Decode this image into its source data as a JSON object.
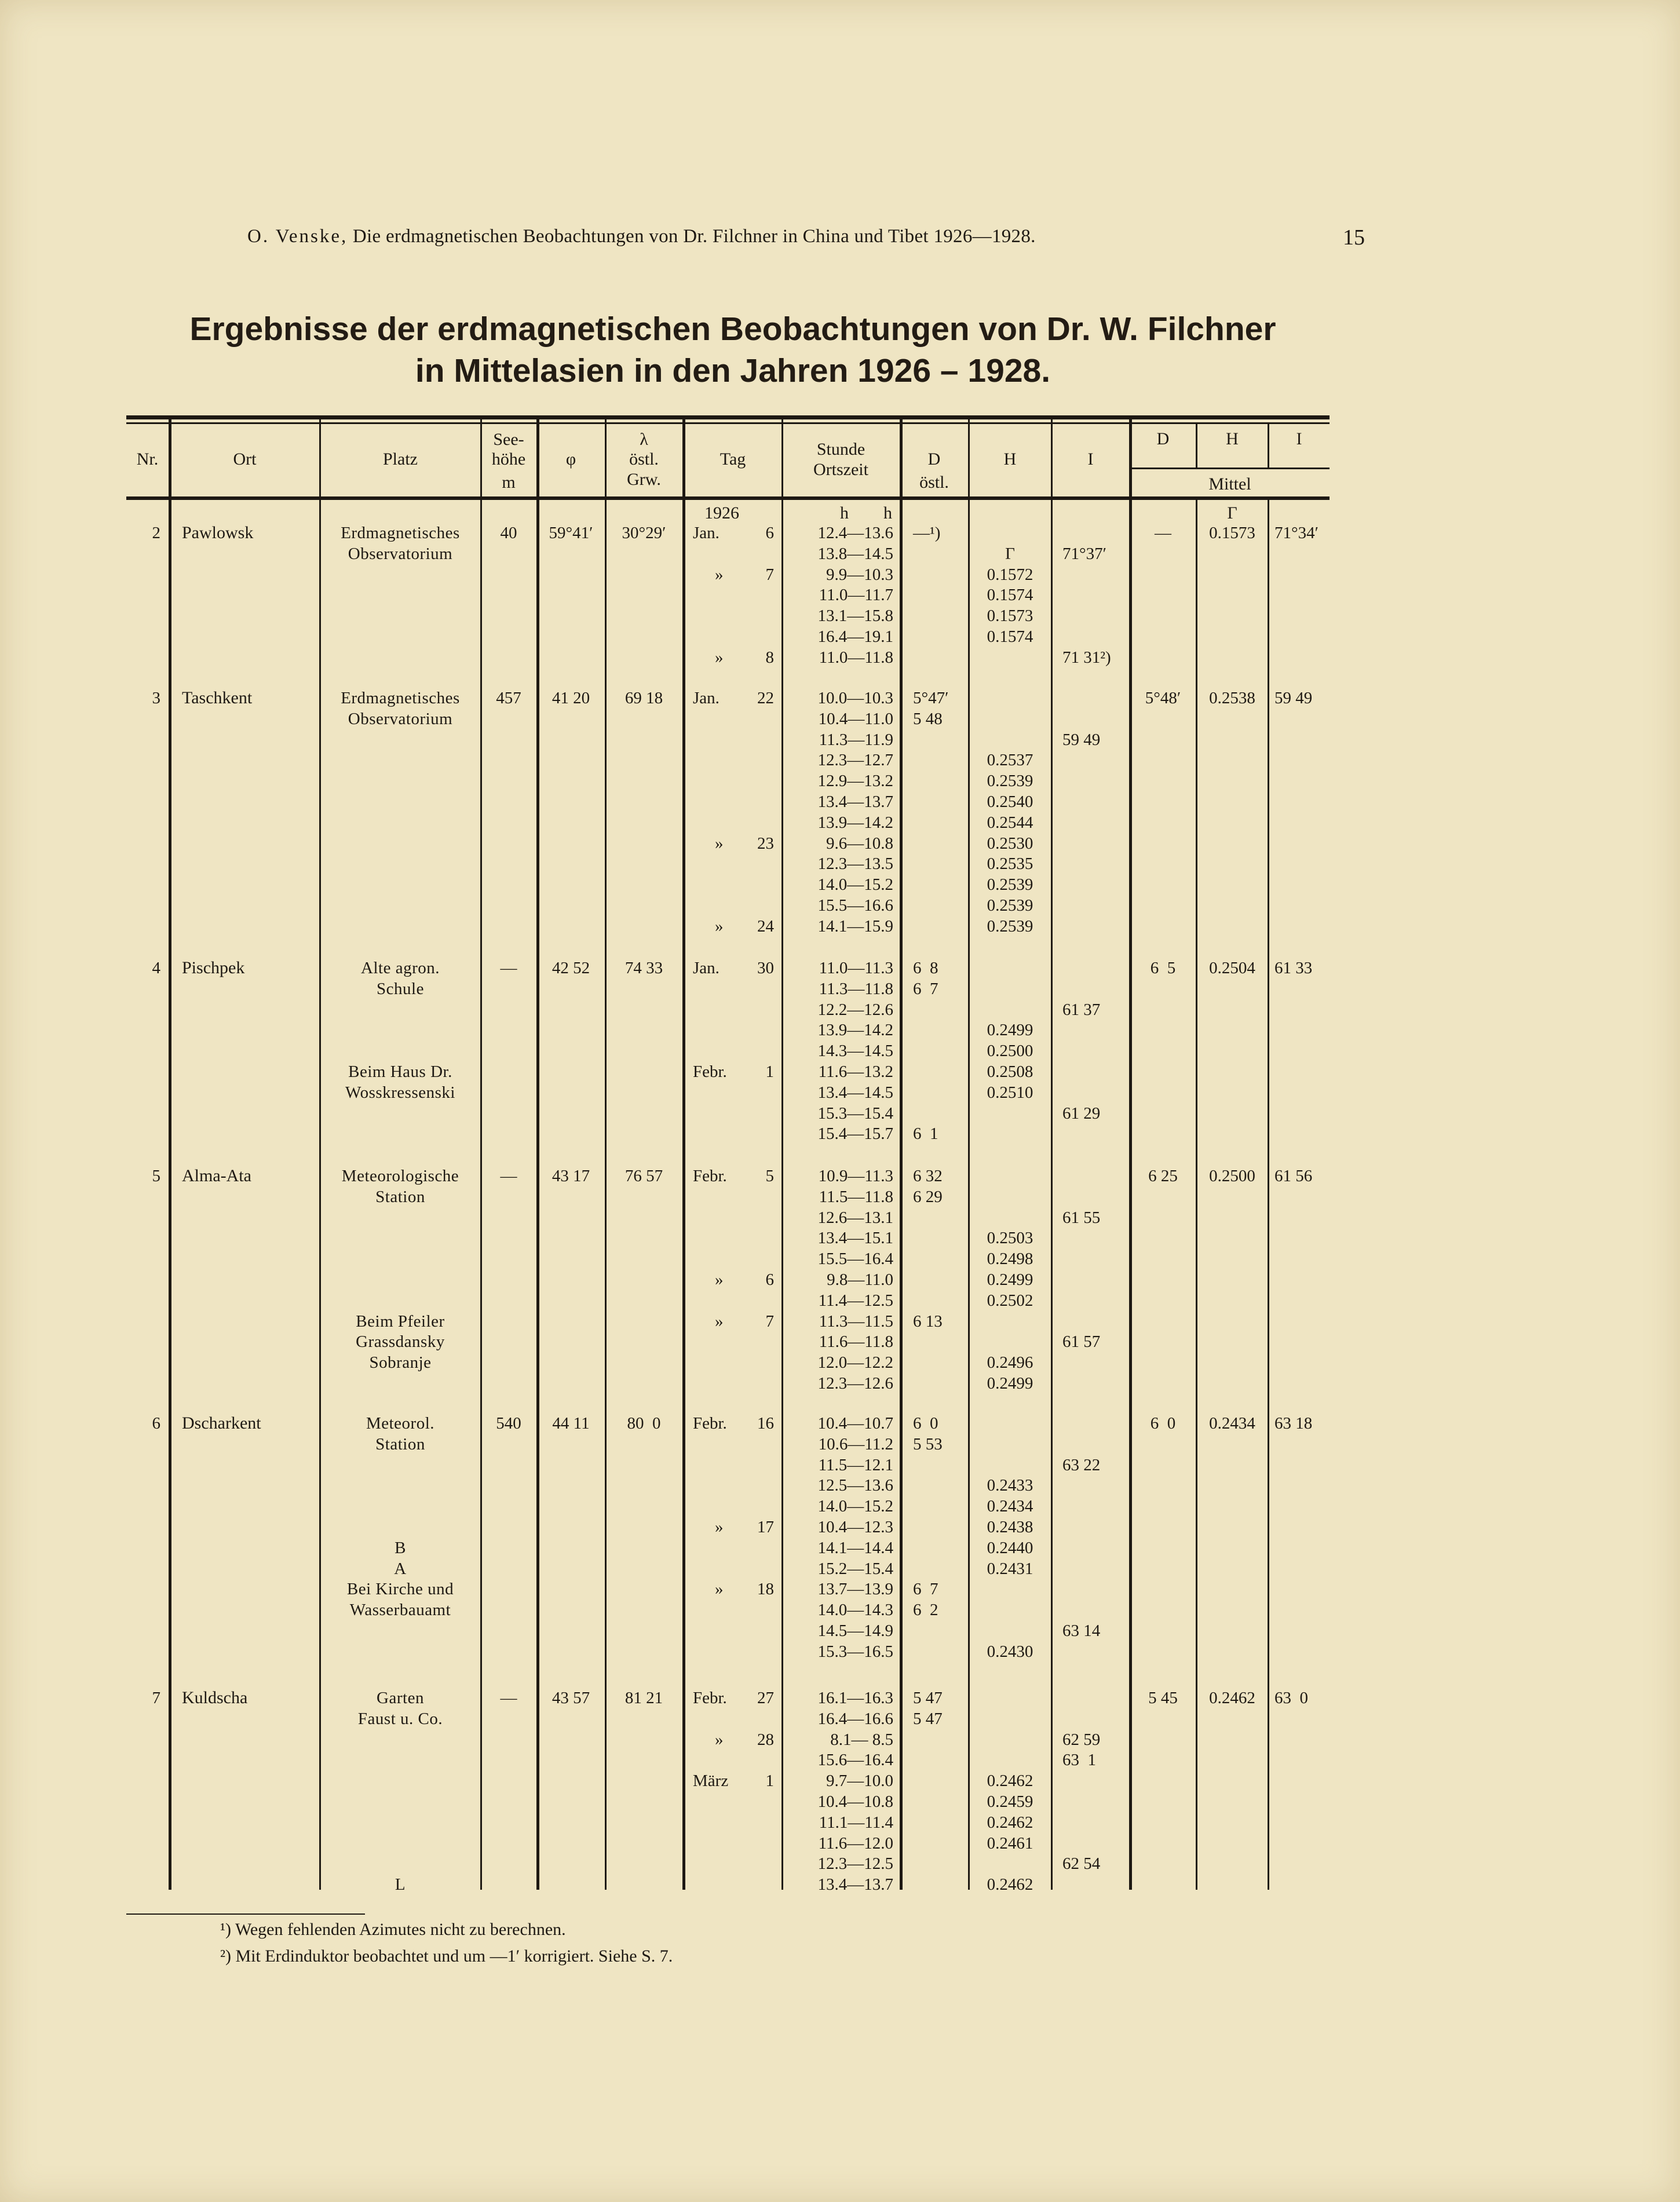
{
  "running_head": {
    "author": "O. Venske,",
    "text": "Die erdmagnetischen Beobachtungen von Dr. Filchner in China und Tibet 1926—1928.",
    "page_number": "15"
  },
  "title": {
    "line1": "Ergebnisse der erdmagnetischen Beobachtungen von Dr. W. Filchner",
    "line2": "in Mittelasien in den Jahren 1926 – 1928."
  },
  "table": {
    "headers": {
      "nr": "Nr.",
      "ort": "Ort",
      "platz": "Platz",
      "seehoehe": [
        "See-",
        "höhe",
        "m"
      ],
      "phi": "φ",
      "lambda": [
        "λ",
        "östl.",
        "Grw."
      ],
      "tag": "Tag",
      "stunde": [
        "Stunde",
        "Ortszeit"
      ],
      "d": [
        "D",
        "östl."
      ],
      "h": "H",
      "i": "I",
      "mittel_d": "D",
      "mittel_h": "H",
      "mittel_i": "I",
      "mittel": "Mittel"
    },
    "units_row": {
      "year": "1926",
      "stunde": "h        h",
      "mittel_h": "Γ"
    },
    "sections": [
      {
        "nr": "2",
        "ort": "Pawlowsk",
        "seehoehe": "40",
        "phi": "59°41′",
        "lambda": "30°29′",
        "mittel": {
          "d": "—",
          "h": "0.1573",
          "i": "71°34′"
        },
        "lines": [
          {
            "platz": "Erdmagnetisches",
            "tag_m": "Jan.",
            "tag_d": "6",
            "stunde": "12.4—13.6",
            "d": "—¹)",
            "h": "",
            "i": ""
          },
          {
            "platz": "Observatorium",
            "tag_m": "",
            "tag_d": "",
            "stunde": "13.8—14.5",
            "d": "",
            "h": "Γ",
            "i": "71°37′"
          },
          {
            "platz": "",
            "tag_m": "»",
            "tag_d": "7",
            "stunde": "9.9—10.3",
            "d": "",
            "h": "0.1572",
            "i": ""
          },
          {
            "platz": "",
            "tag_m": "",
            "tag_d": "",
            "stunde": "11.0—11.7",
            "d": "",
            "h": "0.1574",
            "i": ""
          },
          {
            "platz": "",
            "tag_m": "",
            "tag_d": "",
            "stunde": "13.1—15.8",
            "d": "",
            "h": "0.1573",
            "i": ""
          },
          {
            "platz": "",
            "tag_m": "",
            "tag_d": "",
            "stunde": "16.4—19.1",
            "d": "",
            "h": "0.1574",
            "i": ""
          },
          {
            "platz": "",
            "tag_m": "»",
            "tag_d": "8",
            "stunde": "11.0—11.8",
            "d": "",
            "h": "",
            "i": "71 31²)"
          }
        ]
      },
      {
        "nr": "3",
        "ort": "Taschkent",
        "seehoehe": "457",
        "phi": "41 20",
        "lambda": "69 18",
        "mittel": {
          "d": "5°48′",
          "h": "0.2538",
          "i": "59 49"
        },
        "lines": [
          {
            "platz": "Erdmagnetisches",
            "tag_m": "Jan.",
            "tag_d": "22",
            "stunde": "10.0—10.3",
            "d": "5°47′",
            "h": "",
            "i": ""
          },
          {
            "platz": "Observatorium",
            "tag_m": "",
            "tag_d": "",
            "stunde": "10.4—11.0",
            "d": "5 48",
            "h": "",
            "i": ""
          },
          {
            "platz": "",
            "tag_m": "",
            "tag_d": "",
            "stunde": "11.3—11.9",
            "d": "",
            "h": "",
            "i": "59 49"
          },
          {
            "platz": "",
            "tag_m": "",
            "tag_d": "",
            "stunde": "12.3—12.7",
            "d": "",
            "h": "0.2537",
            "i": ""
          },
          {
            "platz": "",
            "tag_m": "",
            "tag_d": "",
            "stunde": "12.9—13.2",
            "d": "",
            "h": "0.2539",
            "i": ""
          },
          {
            "platz": "",
            "tag_m": "",
            "tag_d": "",
            "stunde": "13.4—13.7",
            "d": "",
            "h": "0.2540",
            "i": ""
          },
          {
            "platz": "",
            "tag_m": "",
            "tag_d": "",
            "stunde": "13.9—14.2",
            "d": "",
            "h": "0.2544",
            "i": ""
          },
          {
            "platz": "",
            "tag_m": "»",
            "tag_d": "23",
            "stunde": "9.6—10.8",
            "d": "",
            "h": "0.2530",
            "i": ""
          },
          {
            "platz": "",
            "tag_m": "",
            "tag_d": "",
            "stunde": "12.3—13.5",
            "d": "",
            "h": "0.2535",
            "i": ""
          },
          {
            "platz": "",
            "tag_m": "",
            "tag_d": "",
            "stunde": "14.0—15.2",
            "d": "",
            "h": "0.2539",
            "i": ""
          },
          {
            "platz": "",
            "tag_m": "",
            "tag_d": "",
            "stunde": "15.5—16.6",
            "d": "",
            "h": "0.2539",
            "i": ""
          },
          {
            "platz": "",
            "tag_m": "»",
            "tag_d": "24",
            "stunde": "14.1—15.9",
            "d": "",
            "h": "0.2539",
            "i": ""
          }
        ]
      },
      {
        "nr": "4",
        "ort": "Pischpek",
        "seehoehe": "—",
        "phi": "42 52",
        "lambda": "74 33",
        "mittel": {
          "d": "6  5",
          "h": "0.2504",
          "i": "61 33"
        },
        "lines": [
          {
            "platz": "Alte agron.",
            "tag_m": "Jan.",
            "tag_d": "30",
            "stunde": "11.0—11.3",
            "d": "6  8",
            "h": "",
            "i": ""
          },
          {
            "platz": "Schule",
            "tag_m": "",
            "tag_d": "",
            "stunde": "11.3—11.8",
            "d": "6  7",
            "h": "",
            "i": ""
          },
          {
            "platz": "",
            "tag_m": "",
            "tag_d": "",
            "stunde": "12.2—12.6",
            "d": "",
            "h": "",
            "i": "61 37"
          },
          {
            "platz": "",
            "tag_m": "",
            "tag_d": "",
            "stunde": "13.9—14.2",
            "d": "",
            "h": "0.2499",
            "i": ""
          },
          {
            "platz": "",
            "tag_m": "",
            "tag_d": "",
            "stunde": "14.3—14.5",
            "d": "",
            "h": "0.2500",
            "i": ""
          },
          {
            "platz": "Beim Haus Dr.",
            "tag_m": "Febr.",
            "tag_d": "1",
            "stunde": "11.6—13.2",
            "d": "",
            "h": "0.2508",
            "i": ""
          },
          {
            "platz": "Wosskressenski",
            "tag_m": "",
            "tag_d": "",
            "stunde": "13.4—14.5",
            "d": "",
            "h": "0.2510",
            "i": ""
          },
          {
            "platz": "",
            "tag_m": "",
            "tag_d": "",
            "stunde": "15.3—15.4",
            "d": "",
            "h": "",
            "i": "61 29"
          },
          {
            "platz": "",
            "tag_m": "",
            "tag_d": "",
            "stunde": "15.4—15.7",
            "d": "6  1",
            "h": "",
            "i": ""
          }
        ]
      },
      {
        "nr": "5",
        "ort": "Alma-Ata",
        "seehoehe": "—",
        "phi": "43 17",
        "lambda": "76 57",
        "mittel": {
          "d": "6 25",
          "h": "0.2500",
          "i": "61 56"
        },
        "lines": [
          {
            "platz": "Meteorologische",
            "tag_m": "Febr.",
            "tag_d": "5",
            "stunde": "10.9—11.3",
            "d": "6 32",
            "h": "",
            "i": ""
          },
          {
            "platz": "Station",
            "tag_m": "",
            "tag_d": "",
            "stunde": "11.5—11.8",
            "d": "6 29",
            "h": "",
            "i": ""
          },
          {
            "platz": "",
            "tag_m": "",
            "tag_d": "",
            "stunde": "12.6—13.1",
            "d": "",
            "h": "",
            "i": "61 55"
          },
          {
            "platz": "",
            "tag_m": "",
            "tag_d": "",
            "stunde": "13.4—15.1",
            "d": "",
            "h": "0.2503",
            "i": ""
          },
          {
            "platz": "",
            "tag_m": "",
            "tag_d": "",
            "stunde": "15.5—16.4",
            "d": "",
            "h": "0.2498",
            "i": ""
          },
          {
            "platz": "",
            "tag_m": "»",
            "tag_d": "6",
            "stunde": "9.8—11.0",
            "d": "",
            "h": "0.2499",
            "i": ""
          },
          {
            "platz": "",
            "tag_m": "",
            "tag_d": "",
            "stunde": "11.4—12.5",
            "d": "",
            "h": "0.2502",
            "i": ""
          },
          {
            "platz": "Beim Pfeiler",
            "tag_m": "»",
            "tag_d": "7",
            "stunde": "11.3—11.5",
            "d": "6 13",
            "h": "",
            "i": ""
          },
          {
            "platz": "Grassdansky",
            "tag_m": "",
            "tag_d": "",
            "stunde": "11.6—11.8",
            "d": "",
            "h": "",
            "i": "61 57"
          },
          {
            "platz": "Sobranje",
            "tag_m": "",
            "tag_d": "",
            "stunde": "12.0—12.2",
            "d": "",
            "h": "0.2496",
            "i": ""
          },
          {
            "platz": "",
            "tag_m": "",
            "tag_d": "",
            "stunde": "12.3—12.6",
            "d": "",
            "h": "0.2499",
            "i": ""
          }
        ]
      },
      {
        "nr": "6",
        "ort": "Dscharkent",
        "seehoehe": "540",
        "phi": "44 11",
        "lambda": "80  0",
        "mittel": {
          "d": "6  0",
          "h": "0.2434",
          "i": "63 18"
        },
        "lines": [
          {
            "platz": "Meteorol.",
            "tag_m": "Febr.",
            "tag_d": "16",
            "stunde": "10.4—10.7",
            "d": "6  0",
            "h": "",
            "i": ""
          },
          {
            "platz": "Station",
            "tag_m": "",
            "tag_d": "",
            "stunde": "10.6—11.2",
            "d": "5 53",
            "h": "",
            "i": ""
          },
          {
            "platz": "",
            "tag_m": "",
            "tag_d": "",
            "stunde": "11.5—12.1",
            "d": "",
            "h": "",
            "i": "63 22"
          },
          {
            "platz": "",
            "tag_m": "",
            "tag_d": "",
            "stunde": "12.5—13.6",
            "d": "",
            "h": "0.2433",
            "i": ""
          },
          {
            "platz": "",
            "tag_m": "",
            "tag_d": "",
            "stunde": "14.0—15.2",
            "d": "",
            "h": "0.2434",
            "i": ""
          },
          {
            "platz": "",
            "tag_m": "»",
            "tag_d": "17",
            "stunde": "10.4—12.3",
            "d": "",
            "h": "0.2438",
            "i": ""
          },
          {
            "platz": "B",
            "tag_m": "",
            "tag_d": "",
            "stunde": "14.1—14.4",
            "d": "",
            "h": "0.2440",
            "i": ""
          },
          {
            "platz": "A",
            "tag_m": "",
            "tag_d": "",
            "stunde": "15.2—15.4",
            "d": "",
            "h": "0.2431",
            "i": ""
          },
          {
            "platz": "Bei Kirche und",
            "tag_m": "»",
            "tag_d": "18",
            "stunde": "13.7—13.9",
            "d": "6  7",
            "h": "",
            "i": ""
          },
          {
            "platz": "Wasserbauamt",
            "tag_m": "",
            "tag_d": "",
            "stunde": "14.0—14.3",
            "d": "6  2",
            "h": "",
            "i": ""
          },
          {
            "platz": "",
            "tag_m": "",
            "tag_d": "",
            "stunde": "14.5—14.9",
            "d": "",
            "h": "",
            "i": "63 14"
          },
          {
            "platz": "",
            "tag_m": "",
            "tag_d": "",
            "stunde": "15.3—16.5",
            "d": "",
            "h": "0.2430",
            "i": ""
          }
        ]
      },
      {
        "nr": "7",
        "ort": "Kuldscha",
        "seehoehe": "—",
        "phi": "43 57",
        "lambda": "81 21",
        "mittel": {
          "d": "5 45",
          "h": "0.2462",
          "i": "63  0"
        },
        "lines": [
          {
            "platz": "Garten",
            "tag_m": "Febr.",
            "tag_d": "27",
            "stunde": "16.1—16.3",
            "d": "5 47",
            "h": "",
            "i": ""
          },
          {
            "platz": "Faust u. Co.",
            "tag_m": "",
            "tag_d": "",
            "stunde": "16.4—16.6",
            "d": "5 47",
            "h": "",
            "i": ""
          },
          {
            "platz": "",
            "tag_m": "»",
            "tag_d": "28",
            "stunde": "8.1— 8.5",
            "d": "",
            "h": "",
            "i": "62 59"
          },
          {
            "platz": "",
            "tag_m": "",
            "tag_d": "",
            "stunde": "15.6—16.4",
            "d": "",
            "h": "",
            "i": "63  1"
          },
          {
            "platz": "",
            "tag_m": "März",
            "tag_d": "1",
            "stunde": "9.7—10.0",
            "d": "",
            "h": "0.2462",
            "i": ""
          },
          {
            "platz": "",
            "tag_m": "",
            "tag_d": "",
            "stunde": "10.4—10.8",
            "d": "",
            "h": "0.2459",
            "i": ""
          },
          {
            "platz": "",
            "tag_m": "",
            "tag_d": "",
            "stunde": "11.1—11.4",
            "d": "",
            "h": "0.2462",
            "i": ""
          },
          {
            "platz": "",
            "tag_m": "",
            "tag_d": "",
            "stunde": "11.6—12.0",
            "d": "",
            "h": "0.2461",
            "i": ""
          },
          {
            "platz": "",
            "tag_m": "",
            "tag_d": "",
            "stunde": "12.3—12.5",
            "d": "",
            "h": "",
            "i": "62 54"
          },
          {
            "platz": "L",
            "tag_m": "",
            "tag_d": "",
            "stunde": "13.4—13.7",
            "d": "",
            "h": "0.2462",
            "i": ""
          }
        ]
      }
    ]
  },
  "footnotes": [
    "¹) Wegen fehlenden Azimutes nicht zu berechnen.",
    "²) Mit Erdinduktor beobachtet und um —1′ korrigiert. Siehe S. 7."
  ]
}
